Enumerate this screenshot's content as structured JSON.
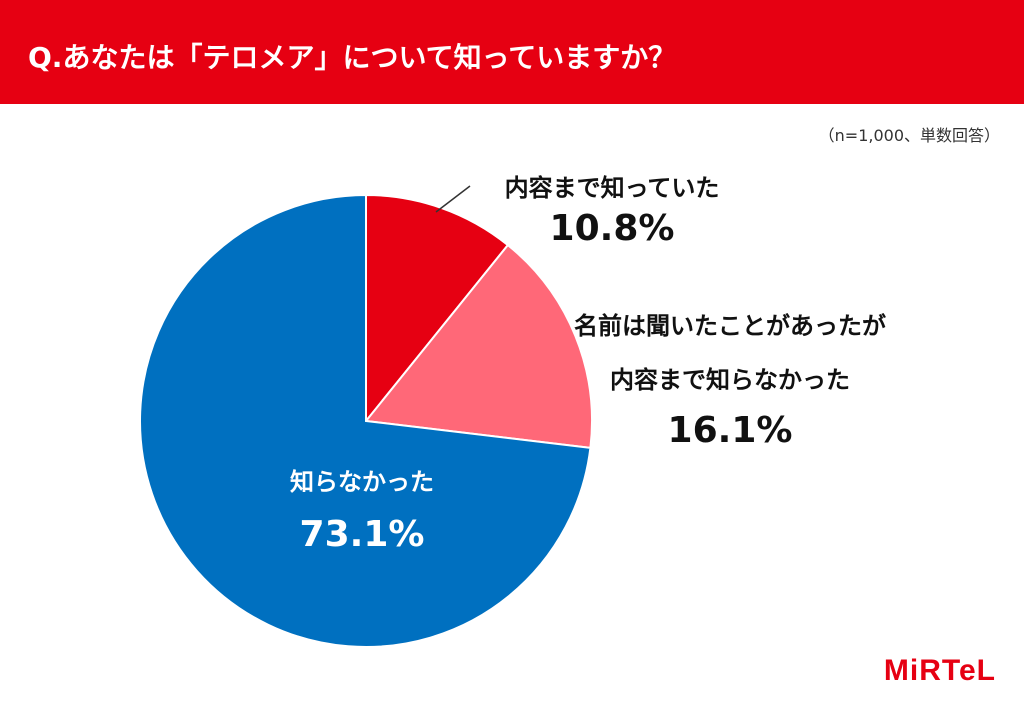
{
  "header": {
    "title": "Q.あなたは「テロメア」について知っていますか？"
  },
  "note": "（n=1,000、単数回答）",
  "chart_data": {
    "type": "pie",
    "title": "Q.あなたは「テロメア」について知っていますか？",
    "start": "top",
    "direction": "clockwise",
    "slices": [
      {
        "label_lines": [
          "内容まで知っていた"
        ],
        "value": 10.8,
        "value_text": "10.8%",
        "color": "#e60012"
      },
      {
        "label_lines": [
          "名前は聞いたことがあったが",
          "内容まで知らなかった"
        ],
        "value": 16.1,
        "value_text": "16.1%",
        "color": "#ff6878"
      },
      {
        "label_lines": [
          "知らなかった"
        ],
        "value": 73.1,
        "value_text": "73.1%",
        "color": "#0070c0"
      }
    ]
  },
  "logo": {
    "text": "MiRTeL",
    "color": "#e60012"
  }
}
